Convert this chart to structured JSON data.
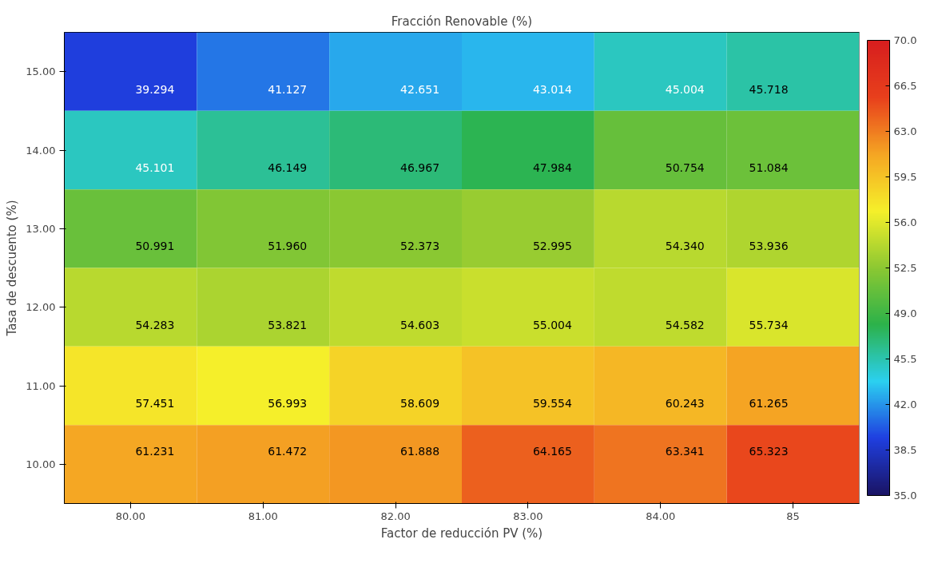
{
  "chart_data": {
    "type": "heatmap",
    "title": "Fracción Renovable (%)",
    "xlabel": "Factor de reducción PV (%)",
    "ylabel": "Tasa de descuento (%)",
    "categories": [
      "80.00",
      "81.00",
      "82.00",
      "83.00",
      "84.00",
      "85"
    ],
    "y_categories": [
      "15.00",
      "14.00",
      "13.00",
      "12.00",
      "11.00",
      "10.00"
    ],
    "cells": [
      [
        39.294,
        41.127,
        42.651,
        43.014,
        45.004,
        45.718
      ],
      [
        45.101,
        46.149,
        46.967,
        47.984,
        50.754,
        51.084
      ],
      [
        50.991,
        51.96,
        52.373,
        52.995,
        54.34,
        53.936
      ],
      [
        54.283,
        53.821,
        54.603,
        55.004,
        54.582,
        55.734
      ],
      [
        57.451,
        56.993,
        58.609,
        59.554,
        60.243,
        61.265
      ],
      [
        61.231,
        61.472,
        61.888,
        64.165,
        63.341,
        65.323
      ]
    ],
    "cell_labels": [
      [
        "39.294",
        "41.127",
        "42.651",
        "43.014",
        "45.004",
        "45.718"
      ],
      [
        "45.101",
        "46.149",
        "46.967",
        "47.984",
        "50.754",
        "51.084"
      ],
      [
        "50.991",
        "51.960",
        "52.373",
        "52.995",
        "54.340",
        "53.936"
      ],
      [
        "54.283",
        "53.821",
        "54.603",
        "55.004",
        "54.582",
        "55.734"
      ],
      [
        "57.451",
        "56.993",
        "58.609",
        "59.554",
        "60.243",
        "61.265"
      ],
      [
        "61.231",
        "61.472",
        "61.888",
        "64.165",
        "63.341",
        "65.323"
      ]
    ],
    "clim": [
      35,
      70
    ],
    "cticks": [
      {
        "value": 35,
        "label": "35.0"
      },
      {
        "value": 38.5,
        "label": "38.5"
      },
      {
        "value": 42,
        "label": "42.0"
      },
      {
        "value": 45.5,
        "label": "45.5"
      },
      {
        "value": 49,
        "label": "49.0"
      },
      {
        "value": 52.5,
        "label": "52.5"
      },
      {
        "value": 56,
        "label": "56.0"
      },
      {
        "value": 59.5,
        "label": "59.5"
      },
      {
        "value": 63,
        "label": "63.0"
      },
      {
        "value": 66.5,
        "label": "66.5"
      },
      {
        "value": 70,
        "label": "70.0"
      }
    ],
    "grid": false
  }
}
